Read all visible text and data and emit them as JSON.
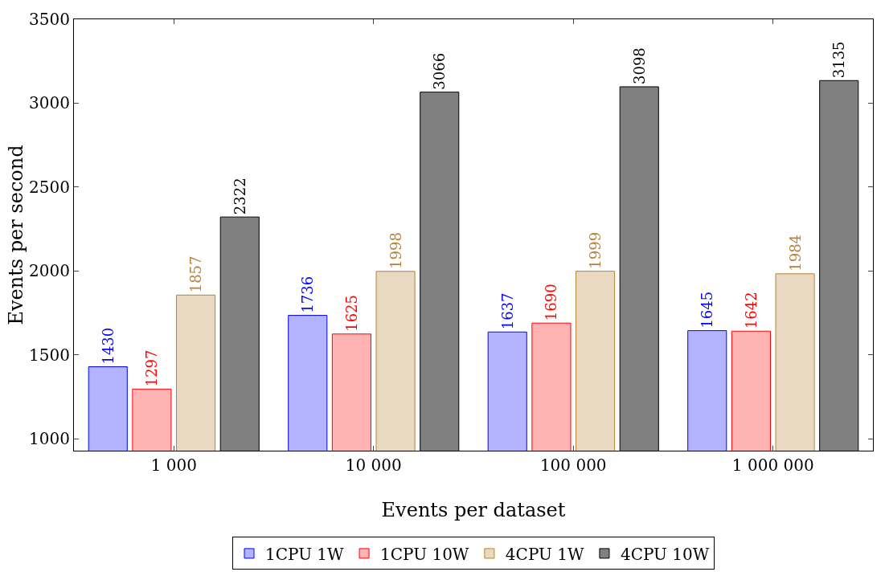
{
  "chart_data": {
    "type": "bar",
    "xlabel": "Events per dataset",
    "ylabel": "Events per second",
    "categories": [
      "1 000",
      "10 000",
      "100 000",
      "1 000 000"
    ],
    "series": [
      {
        "name": "1CPU 1W",
        "color": "#b3b3ff",
        "values": [
          1430,
          1736,
          1637,
          1645
        ]
      },
      {
        "name": "1CPU 10W",
        "color": "#ffb3b3",
        "values": [
          1297,
          1625,
          1690,
          1642
        ]
      },
      {
        "name": "4CPU 1W",
        "color": "#e9d9c3",
        "values": [
          1857,
          1998,
          1999,
          1984
        ]
      },
      {
        "name": "4CPU 10W",
        "color": "#808080",
        "values": [
          2322,
          3066,
          3098,
          3135
        ]
      }
    ],
    "ylim": [
      930,
      3500
    ],
    "yticks": [
      1000,
      1500,
      2000,
      2500,
      3000,
      3500
    ],
    "data_labels": true,
    "grid": false,
    "legend": "bottom"
  }
}
